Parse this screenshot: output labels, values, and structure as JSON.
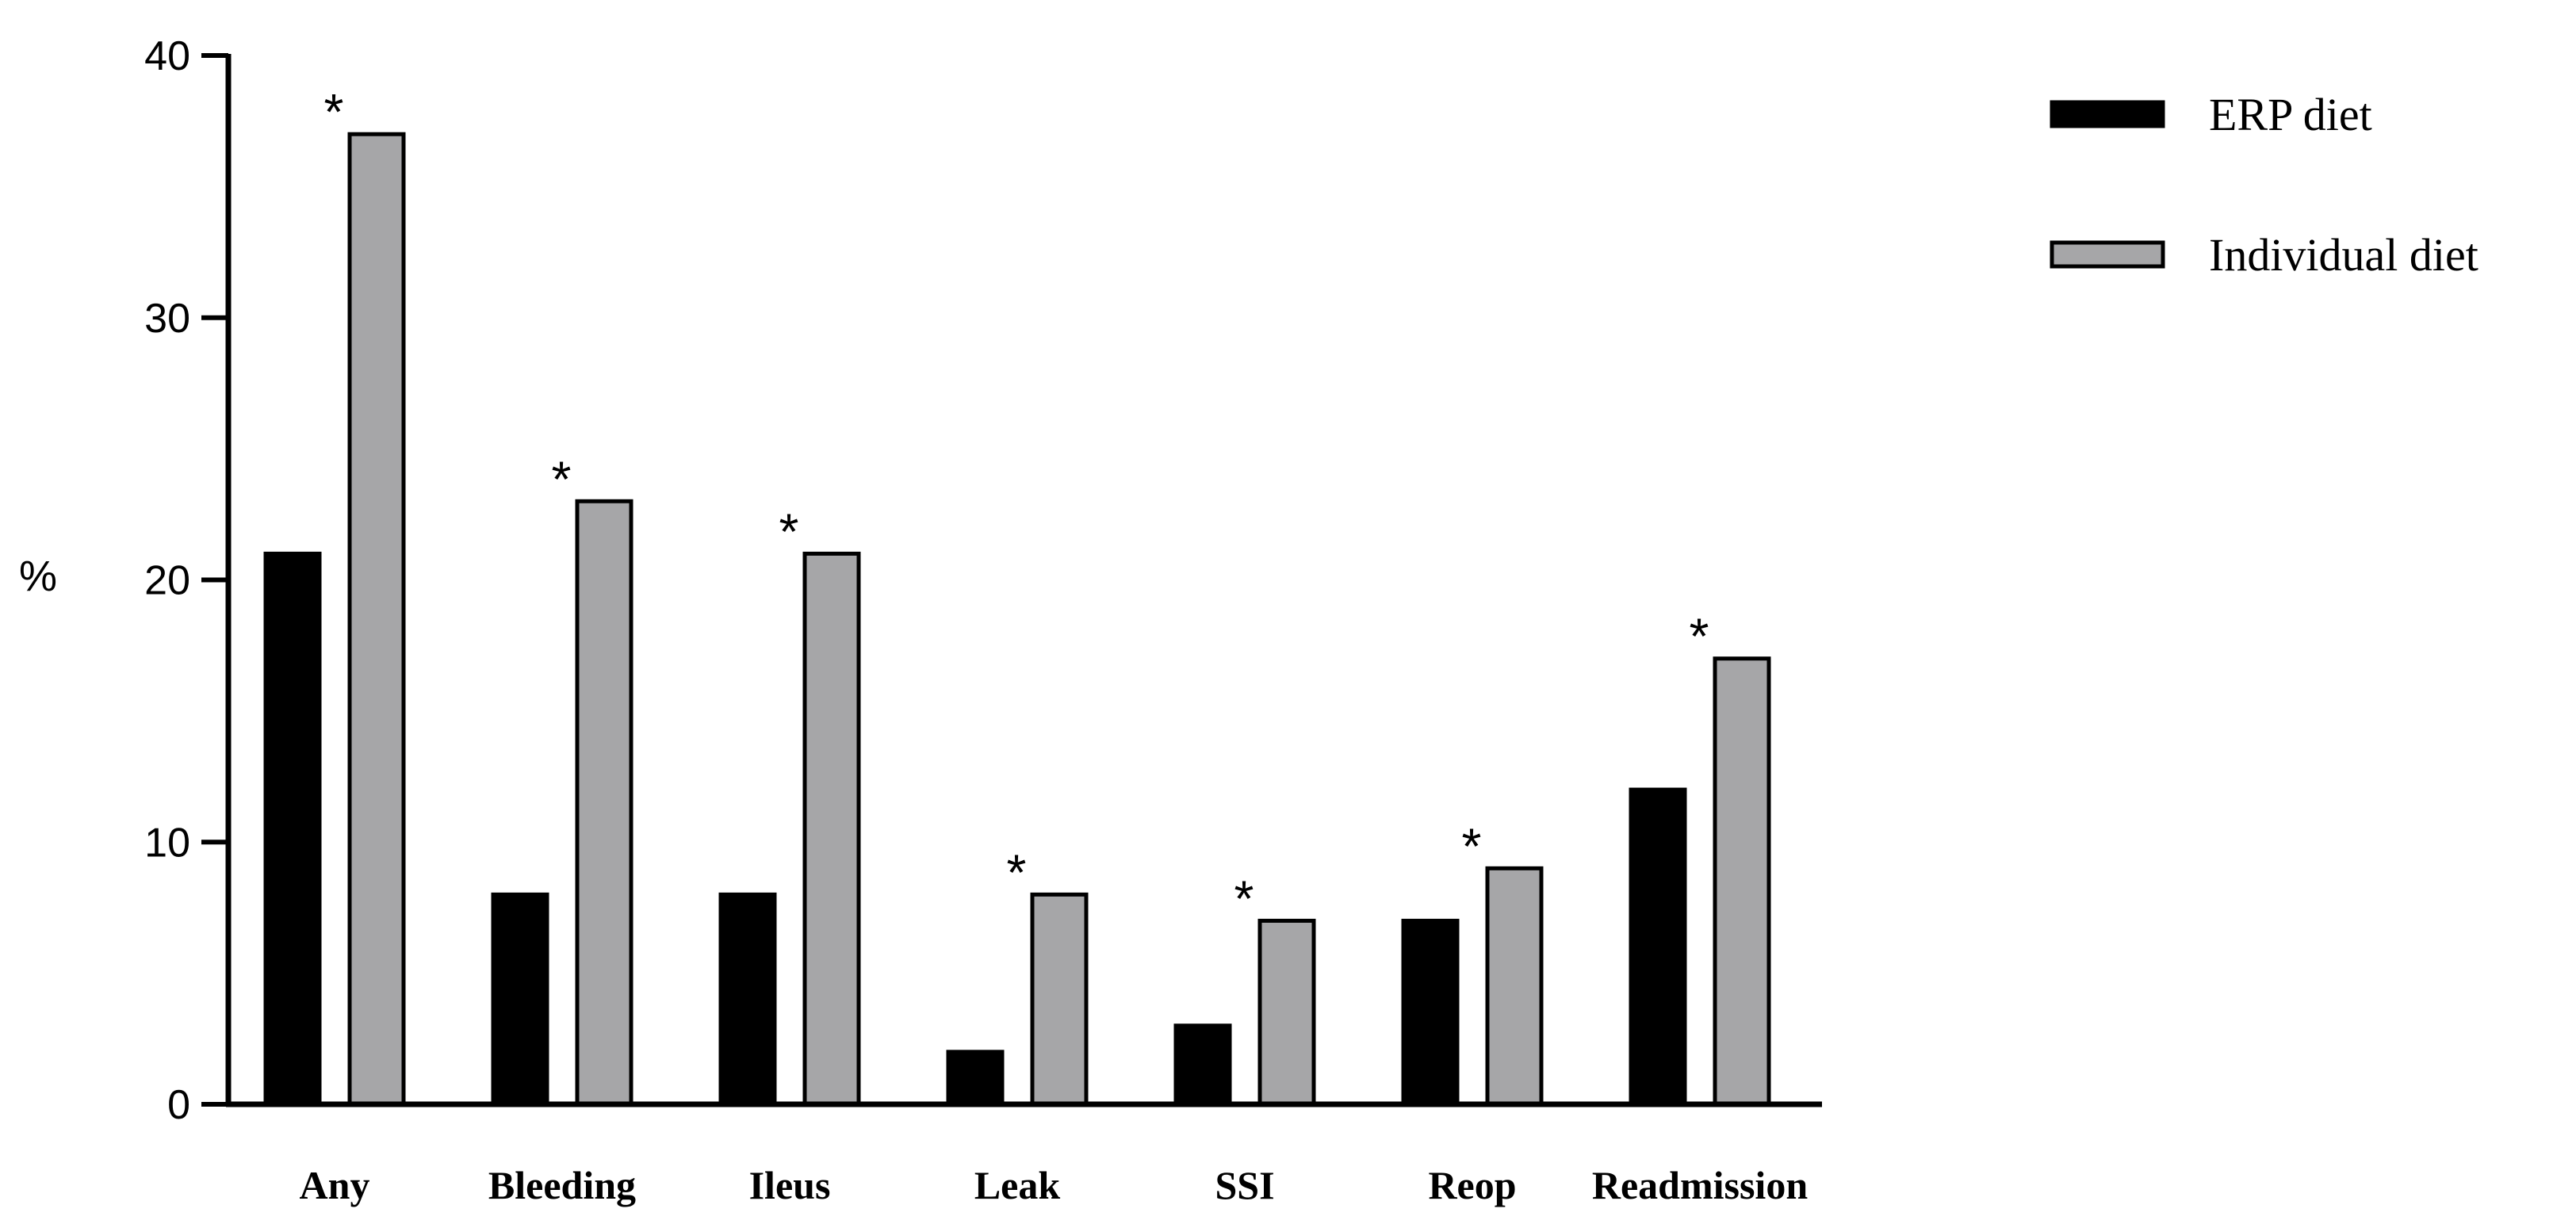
{
  "chart_data": {
    "type": "bar",
    "categories": [
      "Any",
      "Bleeding",
      "Ileus",
      "Leak",
      "SSI",
      "Reop",
      "Readmission"
    ],
    "series": [
      {
        "name": "ERP diet",
        "values": [
          21,
          8,
          8,
          2,
          3,
          7,
          12
        ],
        "color": "#000000"
      },
      {
        "name": "Individual diet",
        "values": [
          37,
          23,
          21,
          8,
          7,
          9,
          17
        ],
        "color": "#a6a6a8"
      }
    ],
    "significance_marker": "*",
    "significant": [
      true,
      true,
      true,
      true,
      true,
      true,
      true
    ],
    "ylabel": "%",
    "xlabel": "",
    "ylim": [
      0,
      40
    ],
    "yticks": [
      0,
      10,
      20,
      30,
      40
    ],
    "grid": false,
    "legend_position": "top-right"
  }
}
